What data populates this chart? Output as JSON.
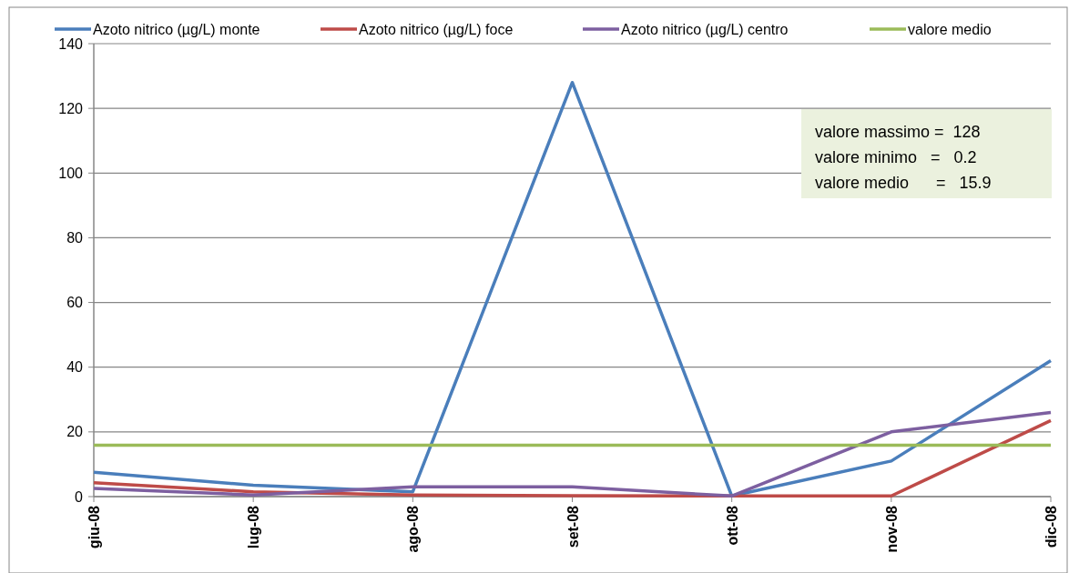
{
  "chart_data": {
    "type": "line",
    "categories": [
      "giu-08",
      "lug-08",
      "ago-08",
      "set-08",
      "ott-08",
      "nov-08",
      "dic-08"
    ],
    "series": [
      {
        "name": "Azoto nitrico (µg/L) monte",
        "color": "#4a7ebb",
        "values": [
          7.5,
          3.5,
          1.5,
          128,
          0.2,
          11,
          42
        ]
      },
      {
        "name": "Azoto nitrico (µg/L) foce",
        "color": "#be4b48",
        "values": [
          4.3,
          1.5,
          0.5,
          0.3,
          0.2,
          0.2,
          23.5
        ]
      },
      {
        "name": "Azoto nitrico (µg/L) centro",
        "color": "#7d5fa0",
        "values": [
          2.5,
          0.5,
          3,
          3,
          0.2,
          20,
          26
        ]
      },
      {
        "name": "valore medio",
        "color": "#9bbb59",
        "values": [
          15.9,
          15.9,
          15.9,
          15.9,
          15.9,
          15.9,
          15.9
        ]
      }
    ],
    "ylim": [
      0,
      140
    ],
    "yticks": [
      0,
      20,
      40,
      60,
      80,
      100,
      120,
      140
    ],
    "grid": "y",
    "legend": "top",
    "marker": "none",
    "line_style": "solid",
    "annotations": [
      "valore massimo =  128",
      "valore minimo   =   0.2",
      "valore medio      =   15.9"
    ]
  }
}
